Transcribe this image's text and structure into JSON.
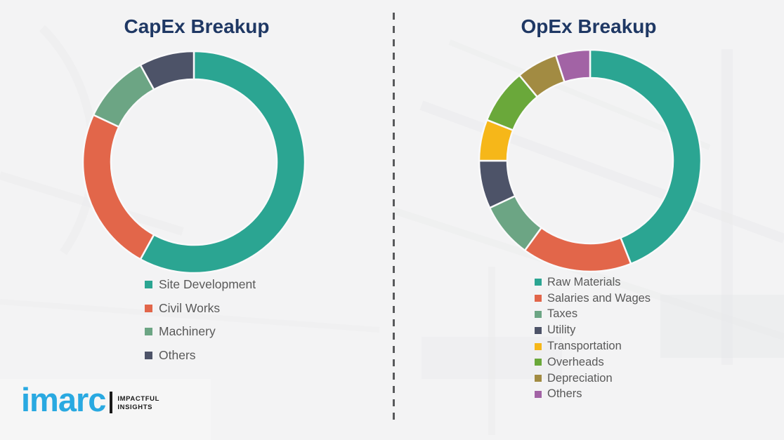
{
  "page": {
    "background_color": "#f3f3f4",
    "divider_color": "#58595b",
    "legend_text_color": "#595959",
    "segment_gap_color": "#f9f9fa"
  },
  "chart_data": [
    {
      "type": "pie",
      "subtype": "donut",
      "title": "CapEx Breakup",
      "title_color": "#1f3864",
      "categories": [
        "Site Development",
        "Civil Works",
        "Machinery",
        "Others"
      ],
      "values": [
        58,
        24,
        10,
        8
      ],
      "colors": [
        "#2ba592",
        "#e2664a",
        "#6ca584",
        "#4d5368"
      ],
      "start_angle_deg": 0,
      "direction": "clockwise",
      "legend_position": "below-chart-left",
      "data_labels": false
    },
    {
      "type": "pie",
      "subtype": "donut",
      "title": "OpEx Breakup",
      "title_color": "#1f3864",
      "categories": [
        "Raw Materials",
        "Salaries and Wages",
        "Taxes",
        "Utility",
        "Transportation",
        "Overheads",
        "Depreciation",
        "Others"
      ],
      "values": [
        44,
        16,
        8,
        7,
        6,
        8,
        6,
        5
      ],
      "colors": [
        "#2ba592",
        "#e2664a",
        "#6ca584",
        "#4d5368",
        "#f6b719",
        "#6aa83a",
        "#a28b42",
        "#a263a5"
      ],
      "start_angle_deg": 0,
      "direction": "clockwise",
      "legend_position": "below-chart-left",
      "data_labels": false
    }
  ],
  "logo": {
    "wordmark": "imarc",
    "wordmark_color": "#29a9e1",
    "tagline_line1": "IMPACTFUL",
    "tagline_line2": "INSIGHTS",
    "tagline_color": "#1a1a1a"
  }
}
